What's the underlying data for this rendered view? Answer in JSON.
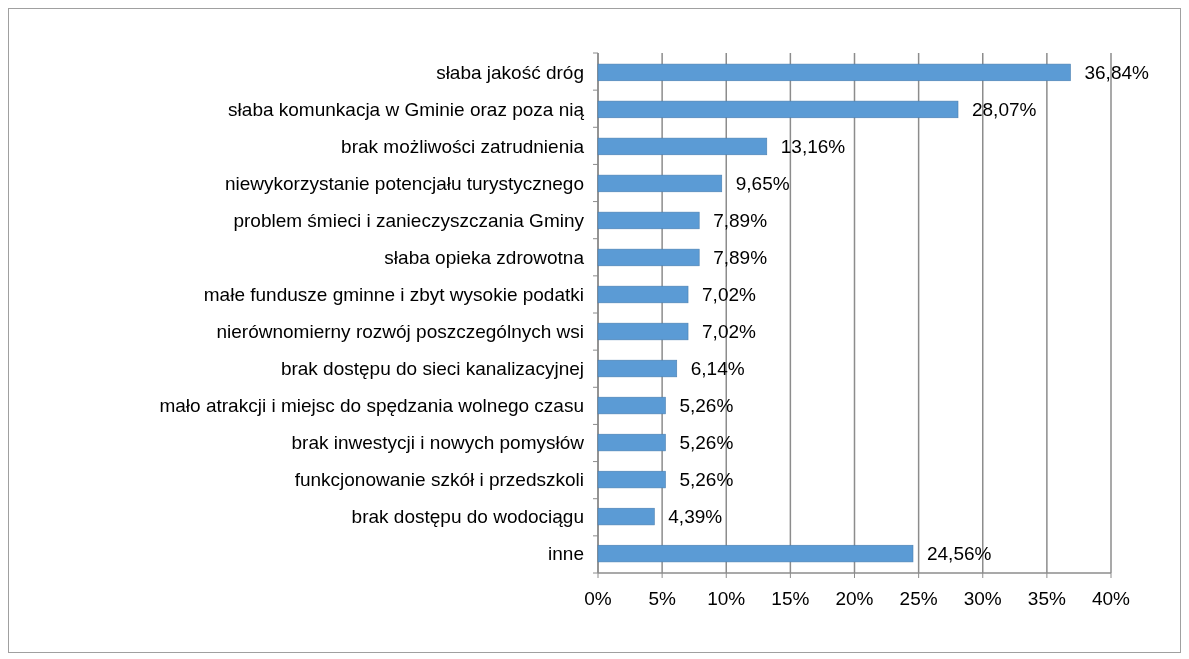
{
  "chart_data": {
    "type": "bar",
    "orientation": "horizontal",
    "categories": [
      "słaba jakość dróg",
      "słaba komunkacja w Gminie oraz poza nią",
      "brak możliwości zatrudnienia",
      "niewykorzystanie potencjału turystycznego",
      "problem śmieci i zanieczyszczania Gminy",
      "słaba opieka zdrowotna",
      "małe fundusze gminne i zbyt wysokie podatki",
      "nierównomierny rozwój poszczególnych wsi",
      "brak dostępu do sieci kanalizacyjnej",
      "mało atrakcji i miejsc do spędzania wolnego czasu",
      "brak inwestycji i nowych pomysłów",
      "funkcjonowanie szkół i przedszkoli",
      "brak dostępu do wodociągu",
      "inne"
    ],
    "values": [
      36.84,
      28.07,
      13.16,
      9.65,
      7.89,
      7.89,
      7.02,
      7.02,
      6.14,
      5.26,
      5.26,
      5.26,
      4.39,
      24.56
    ],
    "value_labels": [
      "36,84%",
      "28,07%",
      "13,16%",
      "9,65%",
      "7,89%",
      "7,89%",
      "7,02%",
      "7,02%",
      "6,14%",
      "5,26%",
      "5,26%",
      "5,26%",
      "4,39%",
      "24,56%"
    ],
    "color": "#5b9bd5",
    "xlim": [
      0,
      40
    ],
    "xticks": [
      {
        "value": 0,
        "label": "0%"
      },
      {
        "value": 5,
        "label": "5%"
      },
      {
        "value": 10,
        "label": "10%"
      },
      {
        "value": 15,
        "label": "15%"
      },
      {
        "value": 20,
        "label": "20%"
      },
      {
        "value": 25,
        "label": "25%"
      },
      {
        "value": 30,
        "label": "30%"
      },
      {
        "value": 35,
        "label": "35%"
      },
      {
        "value": 40,
        "label": "40%"
      }
    ],
    "grid": "x"
  }
}
